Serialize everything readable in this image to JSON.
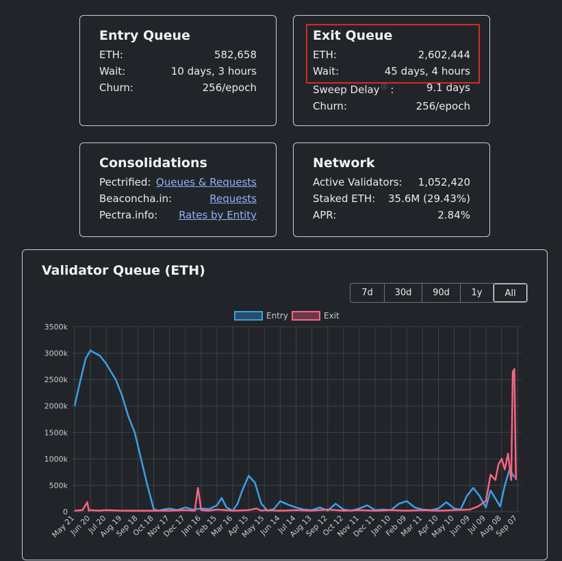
{
  "entry_queue": {
    "title": "Entry Queue",
    "rows": [
      {
        "label": "ETH:",
        "value": "582,658"
      },
      {
        "label": "Wait:",
        "value": "10 days, 3 hours"
      },
      {
        "label": "Churn:",
        "value": "256/epoch"
      }
    ]
  },
  "exit_queue": {
    "title": "Exit Queue",
    "rows": [
      {
        "label": "ETH:",
        "value": "2,602,444"
      },
      {
        "label": "Wait:",
        "value": "45 days, 4 hours"
      },
      {
        "label": "Sweep Delay",
        "value": "9.1 days",
        "info_icon": "ⓘ"
      },
      {
        "label": "Churn:",
        "value": "256/epoch"
      }
    ],
    "highlight_color": "#d62a2a"
  },
  "consolidations": {
    "title": "Consolidations",
    "rows": [
      {
        "label": "Pectrified:",
        "link": "Queues & Requests"
      },
      {
        "label": "Beaconcha.in:",
        "link": "Requests"
      },
      {
        "label": "Pectra.info:",
        "link": "Rates by Entity"
      }
    ]
  },
  "network": {
    "title": "Network",
    "rows": [
      {
        "label": "Active Validators:",
        "value": "1,052,420"
      },
      {
        "label": "Staked ETH:",
        "value": "35.6M (29.43%)"
      },
      {
        "label": "APR:",
        "value": "2.84%"
      }
    ]
  },
  "chart_panel": {
    "title": "Validator Queue (ETH)",
    "ranges": [
      "7d",
      "30d",
      "90d",
      "1y",
      "All"
    ],
    "active_range": "All"
  },
  "chart_data": {
    "type": "line",
    "ylim": [
      0,
      3500000
    ],
    "y_ticks": [
      0,
      500000,
      1000000,
      1500000,
      2000000,
      2500000,
      3000000,
      3500000
    ],
    "y_tick_labels": [
      "0",
      "500k",
      "1000k",
      "1500k",
      "2000k",
      "2500k",
      "3000k",
      "3500k"
    ],
    "x_tick_labels": [
      "May 21",
      "Jun 20",
      "Jul 20",
      "Aug 19",
      "Sep 18",
      "Oct 18",
      "Nov 17",
      "Dec 17",
      "Jan 16",
      "Feb 15",
      "Mar 16",
      "Apr 15",
      "May 15",
      "Jun 14",
      "Jul 14",
      "Aug 13",
      "Sep 12",
      "Oct 12",
      "Nov 11",
      "Dec 11",
      "Jan 10",
      "Feb 09",
      "Mar 11",
      "Apr 10",
      "May 10",
      "Jun 09",
      "Jul 09",
      "Aug 08",
      "Sep 07"
    ],
    "legend_position": "top",
    "grid": true,
    "series": [
      {
        "name": "Entry",
        "color": "#36a2eb",
        "x": [
          0,
          0.3,
          0.7,
          1,
          1.3,
          1.6,
          2,
          2.3,
          2.6,
          3,
          3.4,
          3.8,
          4.2,
          4.6,
          5,
          5.3,
          5.6,
          6,
          6.5,
          7,
          7.5,
          8,
          8.5,
          9,
          9.3,
          9.6,
          10,
          10.3,
          10.6,
          11,
          11.4,
          11.8,
          12.2,
          12.6,
          13,
          13.3,
          13.6,
          14,
          14.5,
          15,
          15.5,
          16,
          16.5,
          17,
          17.5,
          18,
          18.5,
          19,
          19.5,
          20,
          20.5,
          21,
          21.5,
          22,
          22.5,
          23,
          23.5,
          24,
          24.4,
          24.8,
          25.2,
          25.6,
          26,
          26.3,
          26.6,
          26.9,
          27.2,
          27.5,
          27.8
        ],
        "y": [
          2000000,
          2400000,
          2900000,
          3050000,
          3000000,
          2950000,
          2800000,
          2650000,
          2500000,
          2200000,
          1800000,
          1500000,
          1000000,
          500000,
          50000,
          20000,
          40000,
          60000,
          30000,
          80000,
          40000,
          60000,
          50000,
          120000,
          260000,
          80000,
          20000,
          150000,
          400000,
          680000,
          550000,
          150000,
          20000,
          50000,
          200000,
          160000,
          120000,
          80000,
          40000,
          30000,
          80000,
          20000,
          150000,
          40000,
          20000,
          60000,
          120000,
          30000,
          40000,
          30000,
          150000,
          200000,
          80000,
          40000,
          30000,
          60000,
          180000,
          60000,
          40000,
          300000,
          450000,
          300000,
          80000,
          400000,
          250000,
          100000,
          500000,
          800000,
          650000
        ]
      },
      {
        "name": "Exit",
        "color": "#ff6384",
        "x": [
          0,
          0.5,
          0.8,
          0.9,
          1,
          1.5,
          2,
          3,
          4,
          5,
          6,
          7,
          7.6,
          7.8,
          8,
          8.5,
          9,
          10,
          11,
          11.5,
          11.8,
          12,
          13,
          14,
          15,
          16,
          17,
          18,
          19,
          20,
          21,
          22,
          23,
          24,
          25,
          25.5,
          26,
          26.3,
          26.6,
          26.8,
          27,
          27.2,
          27.4,
          27.6,
          27.7,
          27.8,
          27.9
        ],
        "y": [
          20000,
          30000,
          180000,
          20000,
          30000,
          20000,
          30000,
          20000,
          20000,
          20000,
          20000,
          30000,
          20000,
          450000,
          30000,
          20000,
          40000,
          20000,
          30000,
          60000,
          20000,
          30000,
          20000,
          30000,
          20000,
          40000,
          20000,
          30000,
          20000,
          30000,
          20000,
          30000,
          20000,
          30000,
          40000,
          100000,
          200000,
          700000,
          600000,
          900000,
          1000000,
          800000,
          1100000,
          600000,
          2650000,
          2700000,
          600000
        ]
      }
    ]
  }
}
